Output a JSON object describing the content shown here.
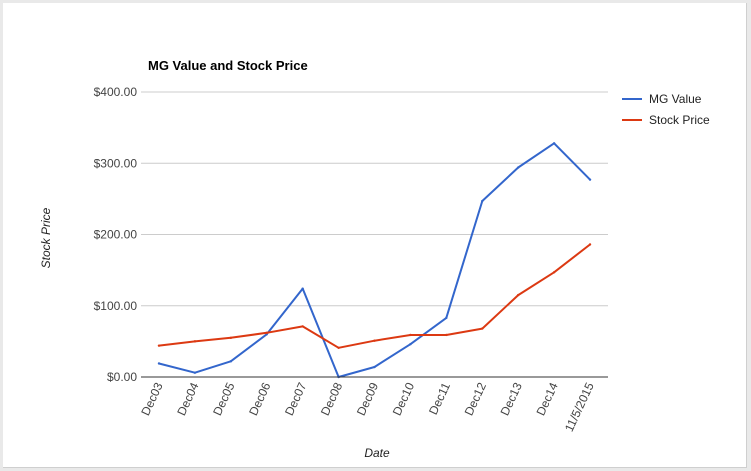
{
  "chart_data": {
    "type": "line",
    "title": "MG Value and Stock Price",
    "xlabel": "Date",
    "ylabel": "Stock Price",
    "categories": [
      "Dec03",
      "Dec04",
      "Dec05",
      "Dec06",
      "Dec07",
      "Dec08",
      "Dec09",
      "Dec10",
      "Dec11",
      "Dec12",
      "Dec13",
      "Dec14",
      "11/5/2015"
    ],
    "series": [
      {
        "name": "MG Value",
        "color": "#3366cc",
        "values": [
          19,
          6,
          22,
          60,
          124,
          0,
          14,
          46,
          83,
          247,
          294,
          328,
          277
        ]
      },
      {
        "name": "Stock Price",
        "color": "#dc3912",
        "values": [
          44,
          50,
          55,
          62,
          71,
          41,
          51,
          59,
          59,
          68,
          115,
          147,
          186
        ]
      }
    ],
    "ylim": [
      0,
      400
    ],
    "yticks": [
      0,
      100,
      200,
      300,
      400
    ],
    "ytick_labels": [
      "$0.00",
      "$100.00",
      "$200.00",
      "$300.00",
      "$400.00"
    ],
    "grid": true,
    "legend_position": "right"
  }
}
